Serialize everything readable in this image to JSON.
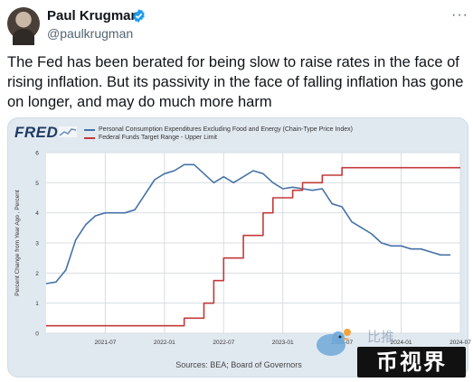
{
  "tweet": {
    "author_name": "Paul Krugman",
    "handle": "@paulkrugman",
    "text": "The Fed has been berated for being slow to raise rates in the face of rising inflation. But its passivity in the face of falling inflation has gone on longer, and may do much more harm",
    "more_icon": "ellipsis-icon",
    "verified_color": "#1d9bf0"
  },
  "card": {
    "logo": "FRED",
    "source": "Sources: BEA; Board of Governors"
  },
  "watermark": {
    "text": "币视界",
    "faint_text": "比推"
  },
  "chart_data": {
    "type": "line",
    "ylabel": "Percent Change from Year Ago , Percent",
    "ylim": [
      0,
      6
    ],
    "yticks": [
      "0",
      "1",
      "2",
      "3",
      "4",
      "5",
      "6"
    ],
    "xlim": [
      "2021-01",
      "2024-07"
    ],
    "xticks": [
      "2021-07",
      "2022-01",
      "2022-07",
      "2023-01",
      "2023-07",
      "2024-01",
      "2024-07"
    ],
    "grid": true,
    "legend_position": "top",
    "series": [
      {
        "name": "Personal Consumption Expenditures Excluding Food and Energy (Chain-Type Price Index)",
        "color": "#4572a7",
        "x": [
          "2021-01",
          "2021-02",
          "2021-03",
          "2021-04",
          "2021-05",
          "2021-06",
          "2021-07",
          "2021-08",
          "2021-09",
          "2021-10",
          "2021-11",
          "2021-12",
          "2022-01",
          "2022-02",
          "2022-03",
          "2022-04",
          "2022-05",
          "2022-06",
          "2022-07",
          "2022-08",
          "2022-09",
          "2022-10",
          "2022-11",
          "2022-12",
          "2023-01",
          "2023-02",
          "2023-03",
          "2023-04",
          "2023-05",
          "2023-06",
          "2023-07",
          "2023-08",
          "2023-09",
          "2023-10",
          "2023-11",
          "2023-12",
          "2024-01",
          "2024-02",
          "2024-03",
          "2024-04",
          "2024-05",
          "2024-06"
        ],
        "values": [
          1.65,
          1.7,
          2.1,
          3.1,
          3.6,
          3.9,
          4.0,
          4.0,
          4.0,
          4.1,
          4.6,
          5.1,
          5.3,
          5.4,
          5.6,
          5.6,
          5.3,
          5.0,
          5.2,
          5.0,
          5.2,
          5.4,
          5.3,
          5.0,
          4.8,
          4.85,
          4.8,
          4.75,
          4.8,
          4.3,
          4.2,
          3.7,
          3.5,
          3.3,
          3.0,
          2.9,
          2.9,
          2.8,
          2.8,
          2.7,
          2.6,
          2.6
        ]
      },
      {
        "name": "Federal Funds Target Range - Upper Limit",
        "color": "#c23a3a",
        "x": [
          "2021-01",
          "2022-03",
          "2022-05",
          "2022-06",
          "2022-07",
          "2022-09",
          "2022-11",
          "2022-12",
          "2023-02",
          "2023-03",
          "2023-05",
          "2023-07",
          "2024-07"
        ],
        "values": [
          0.25,
          0.5,
          1.0,
          1.75,
          2.5,
          3.25,
          4.0,
          4.5,
          4.75,
          5.0,
          5.25,
          5.5,
          5.5
        ]
      }
    ]
  }
}
